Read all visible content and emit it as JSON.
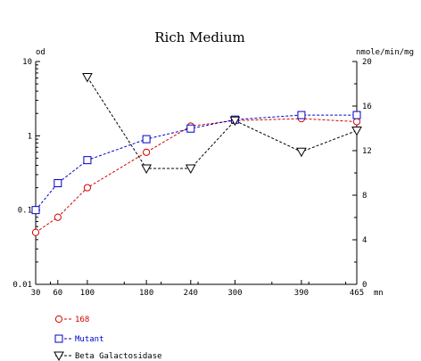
{
  "colors": {
    "series_168": "#d40000",
    "series_mutant": "#0000c8",
    "series_beta": "#000000",
    "axis": "#000000"
  },
  "chart_data": {
    "type": "line",
    "title": "Rich Medium",
    "xunit": "mn",
    "x_ticks": [
      30,
      60,
      100,
      180,
      240,
      300,
      390,
      465
    ],
    "xlim": [
      30,
      465
    ],
    "left_axis": {
      "unit": "od",
      "scale": "log",
      "ylim": [
        0.01,
        10
      ],
      "ticks": [
        0.01,
        0.1,
        1,
        10
      ],
      "tick_labels": [
        "0.01",
        "0.1",
        "1",
        "10"
      ]
    },
    "right_axis": {
      "unit": "nmole/min/mg",
      "scale": "linear",
      "ylim": [
        0,
        20
      ],
      "ticks": [
        0,
        4,
        8,
        12,
        16,
        20
      ],
      "tick_labels": [
        "0",
        "4",
        "8",
        "12",
        "16",
        "20"
      ]
    },
    "series": [
      {
        "name": "168",
        "axis": "left",
        "marker": "circle",
        "color": "#d40000",
        "points": [
          [
            30,
            0.05
          ],
          [
            60,
            0.08
          ],
          [
            100,
            0.2
          ],
          [
            180,
            0.6
          ],
          [
            240,
            1.35
          ],
          [
            300,
            1.6
          ],
          [
            390,
            1.7
          ],
          [
            465,
            1.55
          ]
        ]
      },
      {
        "name": "Mutant",
        "axis": "left",
        "marker": "square",
        "color": "#0000c8",
        "points": [
          [
            30,
            0.1
          ],
          [
            60,
            0.23
          ],
          [
            100,
            0.47
          ],
          [
            180,
            0.9
          ],
          [
            240,
            1.25
          ],
          [
            300,
            1.65
          ],
          [
            390,
            1.9
          ],
          [
            465,
            1.9
          ]
        ]
      },
      {
        "name": "Beta Galactosidase",
        "axis": "right",
        "marker": "triangle-down",
        "color": "#000000",
        "points": [
          [
            100,
            18.6
          ],
          [
            180,
            10.4
          ],
          [
            240,
            10.4
          ],
          [
            300,
            14.7
          ],
          [
            390,
            11.9
          ],
          [
            465,
            13.8
          ]
        ]
      }
    ],
    "legend_position": "bottom-left",
    "grid": false
  }
}
